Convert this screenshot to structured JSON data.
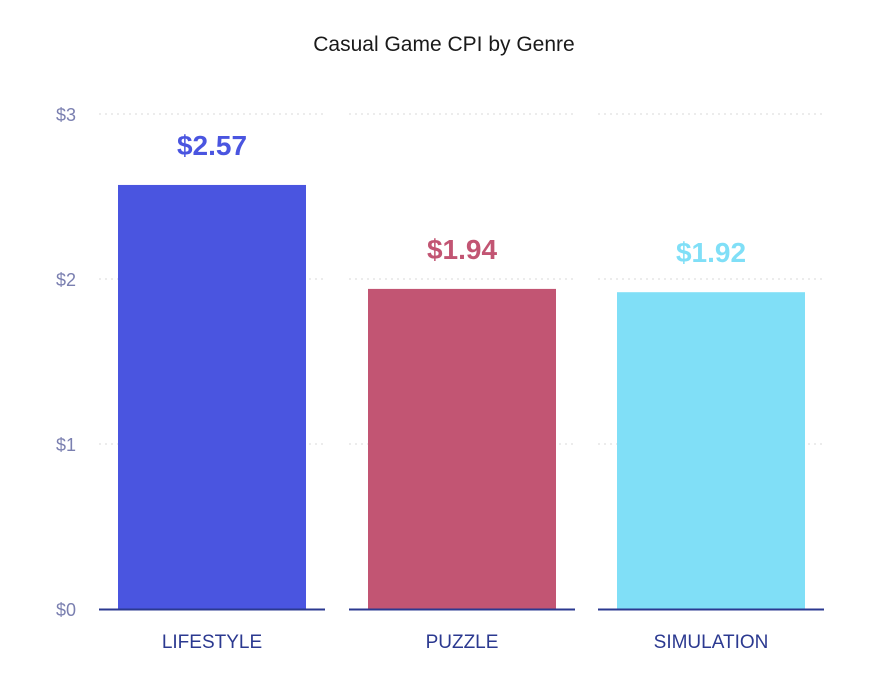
{
  "chart_data": {
    "type": "bar",
    "title": "Casual Game CPI by Genre",
    "xlabel": "",
    "ylabel": "",
    "categories": [
      "LIFESTYLE",
      "PUZZLE",
      "SIMULATION"
    ],
    "values": [
      2.57,
      1.94,
      1.92
    ],
    "value_labels": [
      "$2.57",
      "$1.94",
      "$1.92"
    ],
    "colors": [
      "#4a55e0",
      "#c25573",
      "#80dff7"
    ],
    "ylim": [
      0,
      3
    ],
    "yticks": [
      0,
      1,
      2,
      3
    ],
    "ytick_labels": [
      "$0",
      "$1",
      "$2",
      "$3"
    ],
    "grid": true,
    "legend": "none"
  },
  "style": {
    "axis_color": "#2b3990",
    "category_label_color": "#2b3990",
    "tick_label_color": "#7a7fb0",
    "grid_color": "#d9d9d9"
  }
}
